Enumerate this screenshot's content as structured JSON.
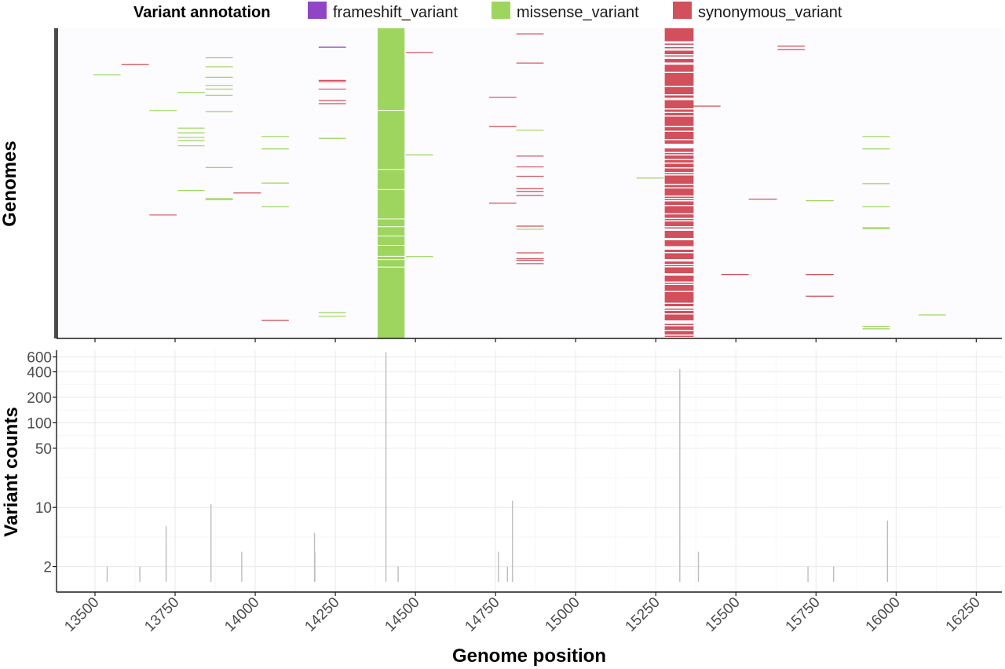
{
  "colors": {
    "frameshift_variant": "#9046c4",
    "missense_variant": "#9ed55f",
    "synonymous_variant": "#d2505c",
    "panel_bg": "#fcfbfe",
    "count_line": "#bdbdbd",
    "grid": "#ebebeb",
    "axis": "#1a1a1a",
    "tick_text": "#4d4d4d"
  },
  "chart_data": [
    {
      "type": "heatmap",
      "title": "",
      "xlabel": "",
      "ylabel": "Genomes",
      "xlim": [
        13380,
        16330
      ],
      "ylim": [
        0,
        100
      ],
      "grid": false,
      "legend": {
        "title": "Variant annotation",
        "placement": "top",
        "entries": [
          {
            "label": "frameshift_variant",
            "color": "#9046c4"
          },
          {
            "label": "missense_variant",
            "color": "#9ed55f"
          },
          {
            "label": "synonymous_variant",
            "color": "#d2505c"
          }
        ]
      },
      "bands": [
        {
          "x_start": 14382,
          "x_end": 14466,
          "annotation": "missense_variant",
          "gaps_y": [
            26.5,
            45.5,
            52,
            61.5,
            64,
            67,
            70,
            73.5,
            74.6,
            77
          ]
        },
        {
          "x_start": 15278,
          "x_end": 15368,
          "annotation": "synonymous_variant",
          "fill_ratio": 0.72
        }
      ],
      "marks": [
        {
          "x_start": 13495,
          "x_end": 13580,
          "y": 15,
          "annotation": "missense_variant"
        },
        {
          "x_start": 13583,
          "x_end": 13668,
          "y": 11.7,
          "annotation": "synonymous_variant"
        },
        {
          "x_start": 13670,
          "x_end": 13755,
          "y": 26.5,
          "annotation": "missense_variant"
        },
        {
          "x_start": 13670,
          "x_end": 13755,
          "y": 60.2,
          "annotation": "synonymous_variant"
        },
        {
          "x_start": 13758,
          "x_end": 13842,
          "y": 20.7,
          "annotation": "missense_variant"
        },
        {
          "x_start": 13758,
          "x_end": 13842,
          "y": 32.2,
          "annotation": "missense_variant"
        },
        {
          "x_start": 13758,
          "x_end": 13842,
          "y": 33.7,
          "annotation": "missense_variant"
        },
        {
          "x_start": 13758,
          "x_end": 13842,
          "y": 35.2,
          "annotation": "missense_variant"
        },
        {
          "x_start": 13758,
          "x_end": 13842,
          "y": 36.2,
          "annotation": "missense_variant"
        },
        {
          "x_start": 13758,
          "x_end": 13842,
          "y": 37.9,
          "annotation": "missense_variant"
        },
        {
          "x_start": 13758,
          "x_end": 13842,
          "y": 52.3,
          "annotation": "missense_variant"
        },
        {
          "x_start": 13845,
          "x_end": 13930,
          "y": 9.5,
          "annotation": "missense_variant"
        },
        {
          "x_start": 13845,
          "x_end": 13930,
          "y": 12.4,
          "annotation": "missense_variant"
        },
        {
          "x_start": 13845,
          "x_end": 13930,
          "y": 15.8,
          "annotation": "missense_variant"
        },
        {
          "x_start": 13845,
          "x_end": 13930,
          "y": 18.4,
          "annotation": "missense_variant"
        },
        {
          "x_start": 13845,
          "x_end": 13930,
          "y": 19.6,
          "annotation": "missense_variant"
        },
        {
          "x_start": 13845,
          "x_end": 13930,
          "y": 21.6,
          "annotation": "missense_variant"
        },
        {
          "x_start": 13845,
          "x_end": 13930,
          "y": 26.9,
          "annotation": "missense_variant"
        },
        {
          "x_start": 13845,
          "x_end": 13930,
          "y": 44.9,
          "annotation": "missense_variant"
        },
        {
          "x_start": 13845,
          "x_end": 13930,
          "y": 54.9,
          "annotation": "missense_variant"
        },
        {
          "x_start": 13845,
          "x_end": 13930,
          "y": 55.3,
          "annotation": "missense_variant"
        },
        {
          "x_start": 13932,
          "x_end": 14018,
          "y": 53.1,
          "annotation": "synonymous_variant"
        },
        {
          "x_start": 14020,
          "x_end": 14105,
          "y": 34.9,
          "annotation": "missense_variant"
        },
        {
          "x_start": 14020,
          "x_end": 14105,
          "y": 38.9,
          "annotation": "missense_variant"
        },
        {
          "x_start": 14020,
          "x_end": 14105,
          "y": 49.9,
          "annotation": "missense_variant"
        },
        {
          "x_start": 14020,
          "x_end": 14105,
          "y": 57.5,
          "annotation": "missense_variant"
        },
        {
          "x_start": 14020,
          "x_end": 14105,
          "y": 94.2,
          "annotation": "synonymous_variant"
        },
        {
          "x_start": 14198,
          "x_end": 14283,
          "y": 6.1,
          "annotation": "frameshift_variant"
        },
        {
          "x_start": 14198,
          "x_end": 14283,
          "y": 16.8,
          "annotation": "synonymous_variant"
        },
        {
          "x_start": 14198,
          "x_end": 14283,
          "y": 17.2,
          "annotation": "synonymous_variant"
        },
        {
          "x_start": 14198,
          "x_end": 14283,
          "y": 19.6,
          "annotation": "synonymous_variant"
        },
        {
          "x_start": 14198,
          "x_end": 14283,
          "y": 23.3,
          "annotation": "synonymous_variant"
        },
        {
          "x_start": 14198,
          "x_end": 14283,
          "y": 24.3,
          "annotation": "synonymous_variant"
        },
        {
          "x_start": 14198,
          "x_end": 14283,
          "y": 35.5,
          "annotation": "missense_variant"
        },
        {
          "x_start": 14198,
          "x_end": 14283,
          "y": 91.7,
          "annotation": "missense_variant"
        },
        {
          "x_start": 14198,
          "x_end": 14283,
          "y": 92.9,
          "annotation": "missense_variant"
        },
        {
          "x_start": 14470,
          "x_end": 14555,
          "y": 7.8,
          "annotation": "synonymous_variant"
        },
        {
          "x_start": 14470,
          "x_end": 14555,
          "y": 40.8,
          "annotation": "missense_variant"
        },
        {
          "x_start": 14470,
          "x_end": 14555,
          "y": 73.6,
          "annotation": "missense_variant"
        },
        {
          "x_start": 14730,
          "x_end": 14815,
          "y": 22.3,
          "annotation": "synonymous_variant"
        },
        {
          "x_start": 14730,
          "x_end": 14815,
          "y": 31.7,
          "annotation": "synonymous_variant"
        },
        {
          "x_start": 14730,
          "x_end": 14815,
          "y": 56.4,
          "annotation": "synonymous_variant"
        },
        {
          "x_start": 14815,
          "x_end": 14900,
          "y": 1.8,
          "annotation": "synonymous_variant"
        },
        {
          "x_start": 14815,
          "x_end": 14900,
          "y": 11.2,
          "annotation": "synonymous_variant"
        },
        {
          "x_start": 14815,
          "x_end": 14900,
          "y": 32.9,
          "annotation": "missense_variant"
        },
        {
          "x_start": 14815,
          "x_end": 14900,
          "y": 41.2,
          "annotation": "synonymous_variant"
        },
        {
          "x_start": 14815,
          "x_end": 14900,
          "y": 44.7,
          "annotation": "synonymous_variant"
        },
        {
          "x_start": 14815,
          "x_end": 14900,
          "y": 47.7,
          "annotation": "synonymous_variant"
        },
        {
          "x_start": 14815,
          "x_end": 14900,
          "y": 51.7,
          "annotation": "synonymous_variant"
        },
        {
          "x_start": 14815,
          "x_end": 14900,
          "y": 52.6,
          "annotation": "synonymous_variant"
        },
        {
          "x_start": 14815,
          "x_end": 14900,
          "y": 53.9,
          "annotation": "synonymous_variant"
        },
        {
          "x_start": 14815,
          "x_end": 14900,
          "y": 63.8,
          "annotation": "synonymous_variant"
        },
        {
          "x_start": 14815,
          "x_end": 14900,
          "y": 64.8,
          "annotation": "missense_variant"
        },
        {
          "x_start": 14815,
          "x_end": 14900,
          "y": 72.4,
          "annotation": "synonymous_variant"
        },
        {
          "x_start": 14815,
          "x_end": 14900,
          "y": 74.3,
          "annotation": "synonymous_variant"
        },
        {
          "x_start": 14815,
          "x_end": 14900,
          "y": 74.8,
          "annotation": "synonymous_variant"
        },
        {
          "x_start": 14815,
          "x_end": 14900,
          "y": 75.9,
          "annotation": "synonymous_variant"
        },
        {
          "x_start": 15190,
          "x_end": 15275,
          "y": 48.3,
          "annotation": "missense_variant"
        },
        {
          "x_start": 15368,
          "x_end": 15452,
          "y": 25.1,
          "annotation": "synonymous_variant"
        },
        {
          "x_start": 15455,
          "x_end": 15540,
          "y": 79.4,
          "annotation": "synonymous_variant"
        },
        {
          "x_start": 15540,
          "x_end": 15628,
          "y": 55.1,
          "annotation": "synonymous_variant"
        },
        {
          "x_start": 15630,
          "x_end": 15715,
          "y": 5.8,
          "annotation": "synonymous_variant"
        },
        {
          "x_start": 15630,
          "x_end": 15715,
          "y": 6.9,
          "annotation": "synonymous_variant"
        },
        {
          "x_start": 15718,
          "x_end": 15805,
          "y": 55.6,
          "annotation": "missense_variant"
        },
        {
          "x_start": 15718,
          "x_end": 15805,
          "y": 79.4,
          "annotation": "synonymous_variant"
        },
        {
          "x_start": 15718,
          "x_end": 15805,
          "y": 86.4,
          "annotation": "synonymous_variant"
        },
        {
          "x_start": 15895,
          "x_end": 15980,
          "y": 34.9,
          "annotation": "missense_variant"
        },
        {
          "x_start": 15895,
          "x_end": 15980,
          "y": 38.9,
          "annotation": "missense_variant"
        },
        {
          "x_start": 15895,
          "x_end": 15980,
          "y": 50.1,
          "annotation": "missense_variant"
        },
        {
          "x_start": 15895,
          "x_end": 15980,
          "y": 57.5,
          "annotation": "missense_variant"
        },
        {
          "x_start": 15895,
          "x_end": 15980,
          "y": 64.3,
          "annotation": "missense_variant"
        },
        {
          "x_start": 15895,
          "x_end": 15980,
          "y": 64.6,
          "annotation": "missense_variant"
        },
        {
          "x_start": 15895,
          "x_end": 15980,
          "y": 96.1,
          "annotation": "missense_variant"
        },
        {
          "x_start": 15895,
          "x_end": 15980,
          "y": 96.9,
          "annotation": "missense_variant"
        },
        {
          "x_start": 16070,
          "x_end": 16155,
          "y": 92.4,
          "annotation": "missense_variant"
        }
      ]
    },
    {
      "type": "bar",
      "title": "",
      "xlabel": "Genome position",
      "ylabel": "Variant counts",
      "y_scale": "log",
      "ylim": [
        1,
        720
      ],
      "xlim": [
        13380,
        16330
      ],
      "xticks": [
        13500,
        13750,
        14000,
        14250,
        14500,
        14750,
        15000,
        15250,
        15500,
        15750,
        16000,
        16250
      ],
      "yticks": [
        2,
        10,
        50,
        100,
        200,
        400,
        600
      ],
      "grid": true,
      "x": [
        13538,
        13640,
        13722,
        13862,
        13958,
        14185,
        14186,
        14408,
        14446,
        14759,
        14787,
        14803,
        15325,
        15383,
        15725,
        15805,
        15973
      ],
      "values": [
        2,
        2,
        6,
        11,
        3,
        5,
        3,
        680,
        2,
        3,
        2,
        12,
        430,
        3,
        2,
        2,
        7
      ]
    }
  ]
}
